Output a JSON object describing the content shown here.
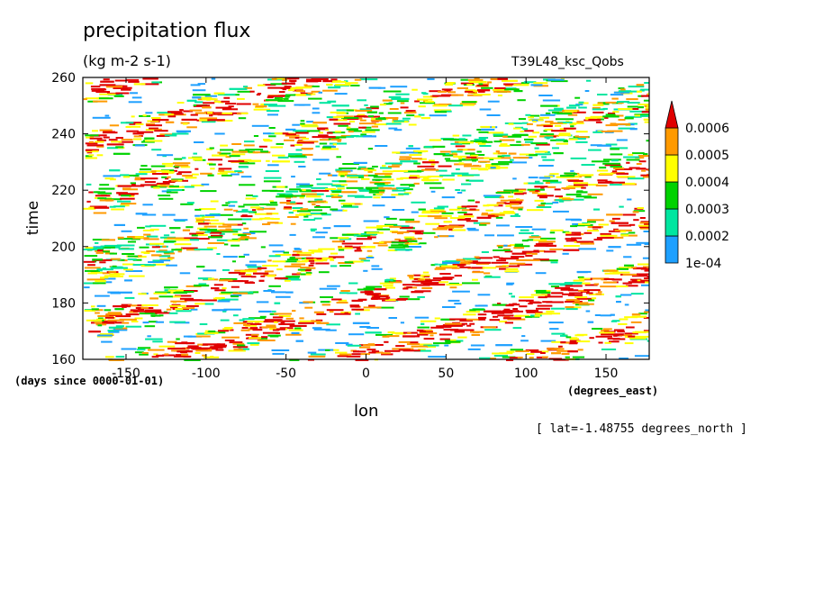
{
  "chart_data": {
    "type": "heatmap",
    "title": "precipitation flux",
    "units": "(kg m-2 s-1)",
    "case_label": "T39L48_ksc_Qobs",
    "xlabel": "lon",
    "ylabel": "time",
    "x_units": "(degrees_east)",
    "y_units": "(days since 0000-01-01)",
    "annotation": "[ lat=-1.48755 degrees_north ]",
    "xlim": [
      -177,
      177
    ],
    "ylim": [
      160,
      260
    ],
    "x_ticks": [
      {
        "value": -150,
        "label": "-150"
      },
      {
        "value": -100,
        "label": "-100"
      },
      {
        "value": -50,
        "label": "-50"
      },
      {
        "value": 0,
        "label": "0"
      },
      {
        "value": 50,
        "label": "50"
      },
      {
        "value": 100,
        "label": "100"
      },
      {
        "value": 150,
        "label": "150"
      }
    ],
    "y_ticks": [
      {
        "value": 160,
        "label": "160"
      },
      {
        "value": 180,
        "label": "180"
      },
      {
        "value": 200,
        "label": "200"
      },
      {
        "value": 220,
        "label": "220"
      },
      {
        "value": 240,
        "label": "240"
      },
      {
        "value": 260,
        "label": "260"
      }
    ],
    "colorbar": {
      "levels": [
        {
          "value": 0.0001,
          "label": "1e-04"
        },
        {
          "value": 0.0002,
          "label": "0.0002"
        },
        {
          "value": 0.0003,
          "label": "0.0003"
        },
        {
          "value": 0.0004,
          "label": "0.0004"
        },
        {
          "value": 0.0005,
          "label": "0.0005"
        },
        {
          "value": 0.0006,
          "label": "0.0006"
        }
      ],
      "colors": [
        "#1ea0ff",
        "#00e6a0",
        "#00d200",
        "#ffff00",
        "#ff9a00",
        "#e00000"
      ],
      "extend": "max"
    },
    "field_description_shown": "diagonal bands of shaded precipitation propagating eastward with time"
  }
}
